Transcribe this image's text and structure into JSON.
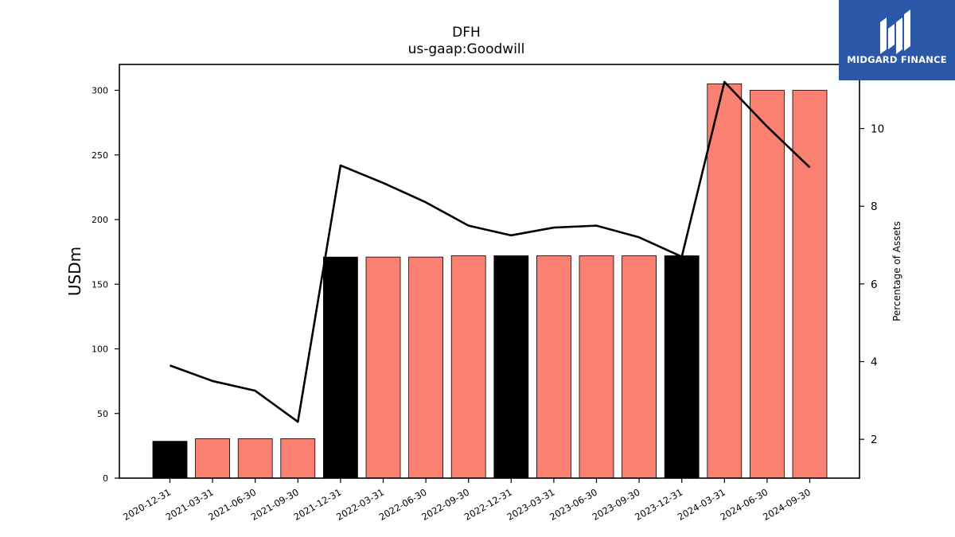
{
  "chart_data": {
    "type": "bar",
    "title": "DFH",
    "subtitle": "us-gaap:Goodwill",
    "ylabel": "USDm",
    "y2label": "Percentage of Assets",
    "ylim": [
      0,
      320
    ],
    "y2lim": [
      1.0,
      11.65
    ],
    "yticks": [
      0,
      50,
      100,
      150,
      200,
      250,
      300
    ],
    "y2ticks": [
      2,
      4,
      6,
      8,
      10
    ],
    "categories": [
      "2020-12-31",
      "2021-03-31",
      "2021-06-30",
      "2021-09-30",
      "2021-12-31",
      "2022-03-31",
      "2022-06-30",
      "2022-09-30",
      "2022-12-31",
      "2023-03-31",
      "2023-06-30",
      "2023-09-30",
      "2023-12-31",
      "2024-03-31",
      "2024-06-30",
      "2024-09-30"
    ],
    "series": [
      {
        "type": "bar",
        "values": [
          28.5,
          30.5,
          30.5,
          30.5,
          171,
          171,
          171,
          172,
          172,
          172,
          172,
          172,
          172,
          305,
          300,
          300
        ],
        "colors": [
          "#000000",
          "#fa8072",
          "#fa8072",
          "#fa8072",
          "#000000",
          "#fa8072",
          "#fa8072",
          "#fa8072",
          "#000000",
          "#fa8072",
          "#fa8072",
          "#fa8072",
          "#000000",
          "#fa8072",
          "#fa8072",
          "#fa8072"
        ]
      },
      {
        "type": "line",
        "axis": "right",
        "color": "#000000",
        "values": [
          3.9,
          3.5,
          3.25,
          2.45,
          9.05,
          8.6,
          8.1,
          7.5,
          7.25,
          7.45,
          7.5,
          7.2,
          6.7,
          11.2,
          10.05,
          9.0
        ]
      }
    ]
  },
  "logo": {
    "text": "MIDGARD FINANCE",
    "bg_color": "#2b58a8"
  }
}
